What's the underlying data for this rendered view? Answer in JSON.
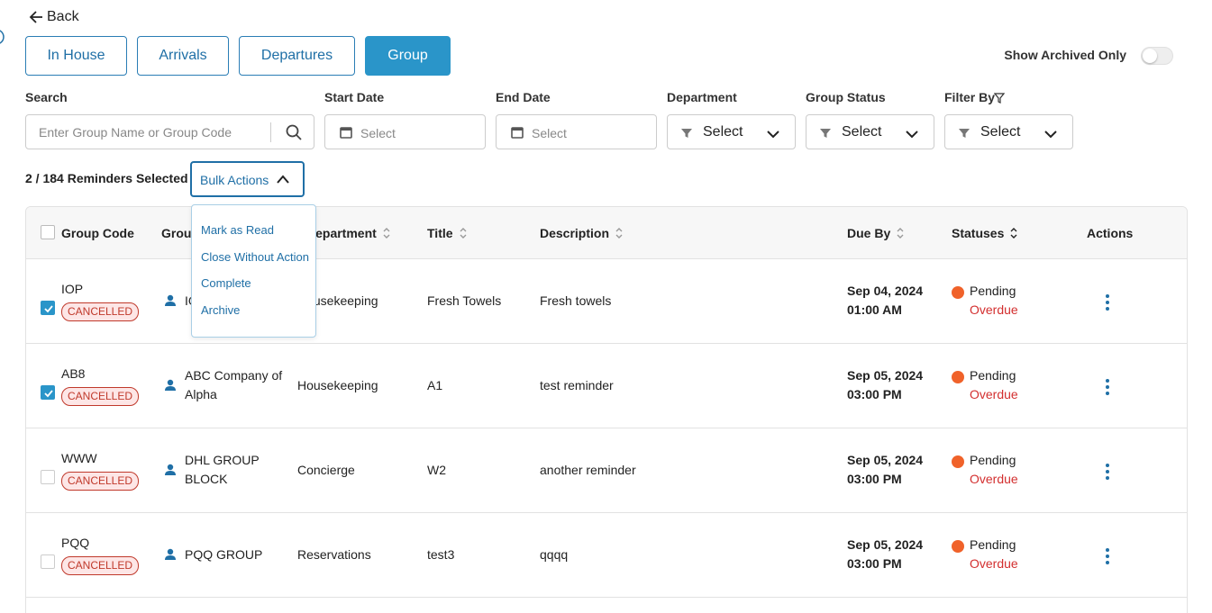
{
  "back": "Back",
  "tabs": [
    "In House",
    "Arrivals",
    "Departures",
    "Group"
  ],
  "archived_toggle": "Show Archived Only",
  "filters": {
    "search": {
      "label": "Search",
      "placeholder": "Enter Group Name or Group Code"
    },
    "start_date": {
      "label": "Start Date",
      "placeholder": "Select"
    },
    "end_date": {
      "label": "End Date",
      "placeholder": "Select"
    },
    "department": {
      "label": "Department",
      "placeholder": "Select"
    },
    "group_status": {
      "label": "Group Status",
      "placeholder": "Select"
    },
    "filter_by": {
      "label": "Filter By",
      "placeholder": "Select"
    }
  },
  "selection": "2 / 184 Reminders Selected",
  "bulk_actions": {
    "label": "Bulk Actions",
    "items": [
      "Mark as Read",
      "Close Without Action",
      "Complete",
      "Archive"
    ]
  },
  "table": {
    "headers": [
      "Group Code",
      "Group Name",
      "Department",
      "Title",
      "Description",
      "Due By",
      "Statuses",
      "Actions"
    ],
    "rows": [
      {
        "checked": true,
        "code": "IOP",
        "badge": "CANCELLED",
        "group": [
          "IOP"
        ],
        "department": "Housekeeping",
        "title": "Fresh Towels",
        "description": "Fresh towels",
        "due": [
          "Sep 04, 2024",
          "01:00 AM"
        ],
        "status": "Pending",
        "overdue": "Overdue"
      },
      {
        "checked": true,
        "code": "AB8",
        "badge": "CANCELLED",
        "group": [
          "ABC Company of",
          "Alpha"
        ],
        "department": "Housekeeping",
        "title": "A1",
        "description": "test reminder",
        "due": [
          "Sep 05, 2024",
          "03:00 PM"
        ],
        "status": "Pending",
        "overdue": "Overdue"
      },
      {
        "checked": false,
        "code": "WWW",
        "badge": "CANCELLED",
        "group": [
          "DHL GROUP",
          "BLOCK"
        ],
        "department": "Concierge",
        "title": "W2",
        "description": "another reminder",
        "due": [
          "Sep 05, 2024",
          "03:00 PM"
        ],
        "status": "Pending",
        "overdue": "Overdue"
      },
      {
        "checked": false,
        "code": "PQQ",
        "badge": "CANCELLED",
        "group": [
          "PQQ GROUP"
        ],
        "department": "Reservations",
        "title": "test3",
        "description": "qqqq",
        "due": [
          "Sep 05, 2024",
          "03:00 PM"
        ],
        "status": "Pending",
        "overdue": "Overdue"
      }
    ]
  }
}
